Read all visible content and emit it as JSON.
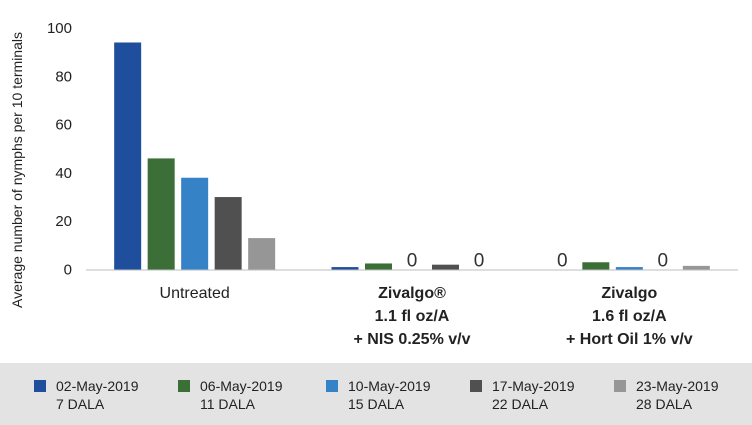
{
  "chart_data": {
    "type": "bar",
    "ylabel": "Average number of nymphs per 10 terminals",
    "ylim": [
      0,
      100
    ],
    "yticks": [
      0,
      20,
      40,
      60,
      80,
      100
    ],
    "grid": false,
    "legend_position": "bottom",
    "categories": [
      {
        "lines": [
          "Untreated"
        ],
        "bold": false
      },
      {
        "lines": [
          "Zivalgo®",
          "1.1 fl oz/A",
          "+ NIS 0.25% v/v"
        ],
        "bold": true
      },
      {
        "lines": [
          "Zivalgo",
          "1.6 fl oz/A",
          "+ Hort Oil 1% v/v"
        ],
        "bold": true
      }
    ],
    "series": [
      {
        "name": "02-May-2019",
        "sub": "7 DALA",
        "color": "#1f4e9c",
        "values": [
          94,
          1,
          0
        ]
      },
      {
        "name": "06-May-2019",
        "sub": "11 DALA",
        "color": "#3c6e37",
        "values": [
          46,
          2.5,
          3
        ]
      },
      {
        "name": "10-May-2019",
        "sub": "15 DALA",
        "color": "#3682c7",
        "values": [
          38,
          0,
          1
        ]
      },
      {
        "name": "17-May-2019",
        "sub": "22 DALA",
        "color": "#505050",
        "values": [
          30,
          2,
          0
        ]
      },
      {
        "name": "23-May-2019",
        "sub": "28 DALA",
        "color": "#969696",
        "values": [
          13,
          0,
          1.5
        ]
      }
    ],
    "zero_labels": "0"
  }
}
